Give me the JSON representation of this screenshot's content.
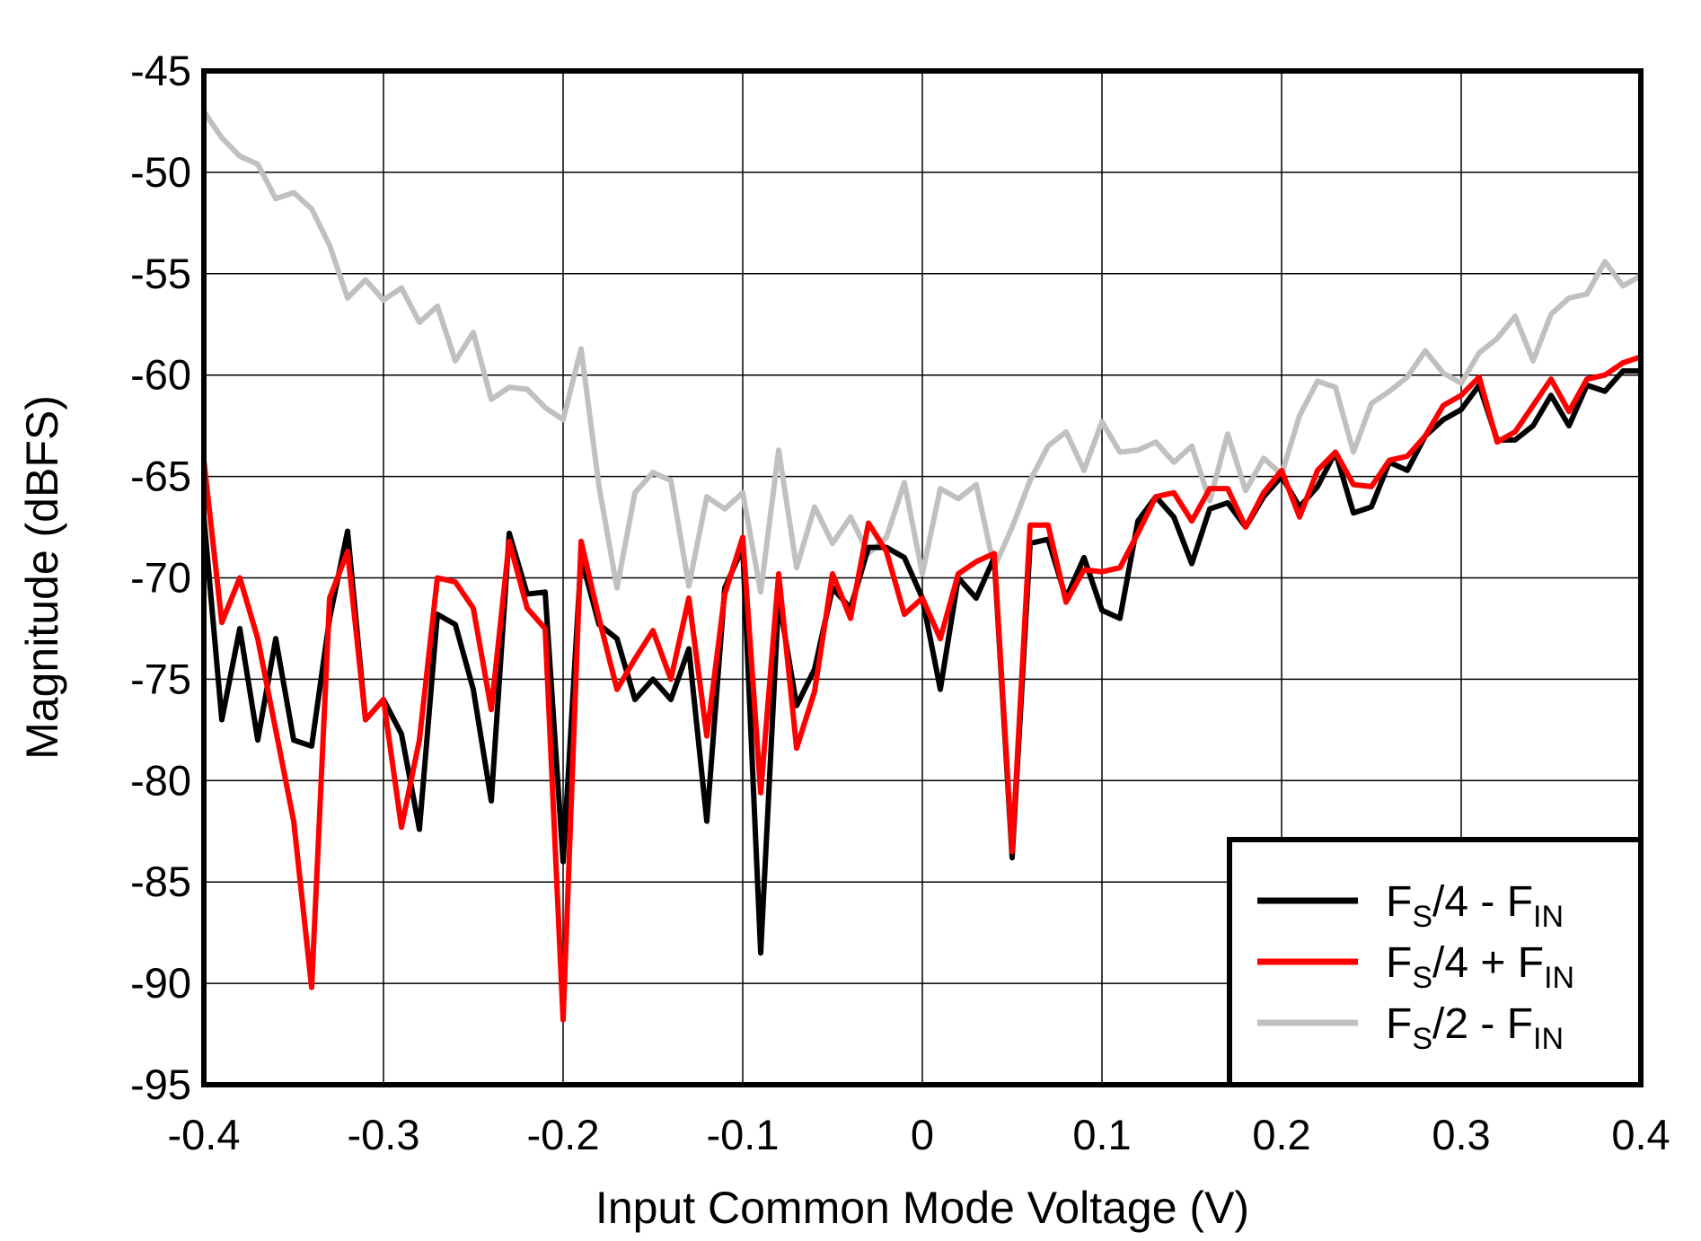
{
  "chart_data": {
    "type": "line",
    "xlabel": "Input Common Mode Voltage  (V)",
    "ylabel": "Magnitude  (dBFS)",
    "xlim": [
      -0.4,
      0.4
    ],
    "ylim": [
      -95,
      -45
    ],
    "xticks": [
      "-0.4",
      "-0.3",
      "-0.2",
      "-0.1",
      "0",
      "0.1",
      "0.2",
      "0.3",
      "0.4"
    ],
    "yticks": [
      "-45",
      "-50",
      "-55",
      "-60",
      "-65",
      "-70",
      "-75",
      "-80",
      "-85",
      "-90",
      "-95"
    ],
    "grid": true,
    "legend_position": "bottom-right",
    "x_start": -0.4,
    "x_step": 0.01,
    "series": [
      {
        "name": "FS/4 - FIN",
        "legend": {
          "a": "F",
          "b": "S",
          "c": "/4 - F",
          "d": "IN"
        },
        "color": "#000000",
        "values": [
          -67,
          -77,
          -72.5,
          -78,
          -73,
          -78,
          -78.3,
          -72,
          -67.7,
          -77,
          -76,
          -77.7,
          -82.4,
          -71.8,
          -72.3,
          -75.5,
          -81,
          -67.8,
          -70.8,
          -70.7,
          -84,
          -69,
          -72.3,
          -73,
          -76,
          -75,
          -76,
          -73.5,
          -82,
          -70.5,
          -68.5,
          -88.5,
          -71,
          -76.3,
          -74.5,
          -70.5,
          -71.5,
          -68.5,
          -68.5,
          -69,
          -71,
          -75.5,
          -70,
          -71,
          -69,
          -83.8,
          -68.3,
          -68.1,
          -71,
          -69,
          -71.6,
          -72,
          -67.2,
          -66,
          -67,
          -69.3,
          -66.6,
          -66.3,
          -67.5,
          -66,
          -65,
          -66.5,
          -65.5,
          -63.8,
          -66.8,
          -66.5,
          -64.3,
          -64.7,
          -63,
          -62.2,
          -61.7,
          -60.5,
          -63.2,
          -63.2,
          -62.5,
          -61,
          -62.5,
          -60.5,
          -60.8,
          -59.8,
          -59.8
        ]
      },
      {
        "name": "FS/4 + FIN",
        "legend": {
          "a": "F",
          "b": "S",
          "c": "/4 + F",
          "d": "IN"
        },
        "color": "#ff0000",
        "values": [
          -64.2,
          -72.2,
          -70,
          -73,
          -77.5,
          -82,
          -90.2,
          -71,
          -68.7,
          -77,
          -76,
          -82.3,
          -78,
          -70,
          -70.2,
          -71.5,
          -76.5,
          -68.2,
          -71.5,
          -72.5,
          -91.8,
          -68.2,
          -72,
          -75.5,
          -74,
          -72.6,
          -75,
          -71,
          -77.8,
          -70.8,
          -68,
          -80.6,
          -69.8,
          -78.4,
          -75.6,
          -69.8,
          -72,
          -67.3,
          -68.7,
          -71.8,
          -71,
          -73,
          -69.8,
          -69.2,
          -68.8,
          -83.5,
          -67.4,
          -67.4,
          -71.2,
          -69.6,
          -69.7,
          -69.5,
          -67.8,
          -66,
          -65.8,
          -67.2,
          -65.6,
          -65.6,
          -67.5,
          -65.8,
          -64.7,
          -67,
          -64.7,
          -63.8,
          -65.4,
          -65.5,
          -64.2,
          -64,
          -63,
          -61.5,
          -61,
          -60.1,
          -63.3,
          -62.8,
          -61.5,
          -60.2,
          -61.8,
          -60.2,
          -60,
          -59.4,
          -59.1
        ]
      },
      {
        "name": "FS/2 - FIN",
        "legend": {
          "a": "F",
          "b": "S",
          "c": "/2 - F",
          "d": "IN"
        },
        "color": "#c0c0c0",
        "values": [
          -47,
          -48.3,
          -49.2,
          -49.6,
          -51.3,
          -51,
          -51.8,
          -53.6,
          -56.2,
          -55.3,
          -56.3,
          -55.7,
          -57.4,
          -56.6,
          -59.3,
          -57.9,
          -61.2,
          -60.6,
          -60.7,
          -61.6,
          -62.2,
          -58.7,
          -65.5,
          -70.5,
          -65.8,
          -64.8,
          -65.2,
          -70.4,
          -66,
          -66.6,
          -65.8,
          -70.7,
          -63.7,
          -69.5,
          -66.5,
          -68.3,
          -67,
          -68.8,
          -68,
          -65.3,
          -69.8,
          -65.6,
          -66.1,
          -65.4,
          -69.5,
          -67.5,
          -65.2,
          -63.5,
          -62.8,
          -64.7,
          -62.3,
          -63.8,
          -63.7,
          -63.3,
          -64.3,
          -63.5,
          -66.2,
          -62.9,
          -65.7,
          -64.1,
          -64.9,
          -62,
          -60.3,
          -60.6,
          -63.8,
          -61.4,
          -60.8,
          -60.1,
          -58.8,
          -59.9,
          -60.4,
          -58.9,
          -58.2,
          -57.1,
          -59.3,
          -57,
          -56.2,
          -56,
          -54.4,
          -55.6,
          -55.1
        ]
      }
    ]
  }
}
